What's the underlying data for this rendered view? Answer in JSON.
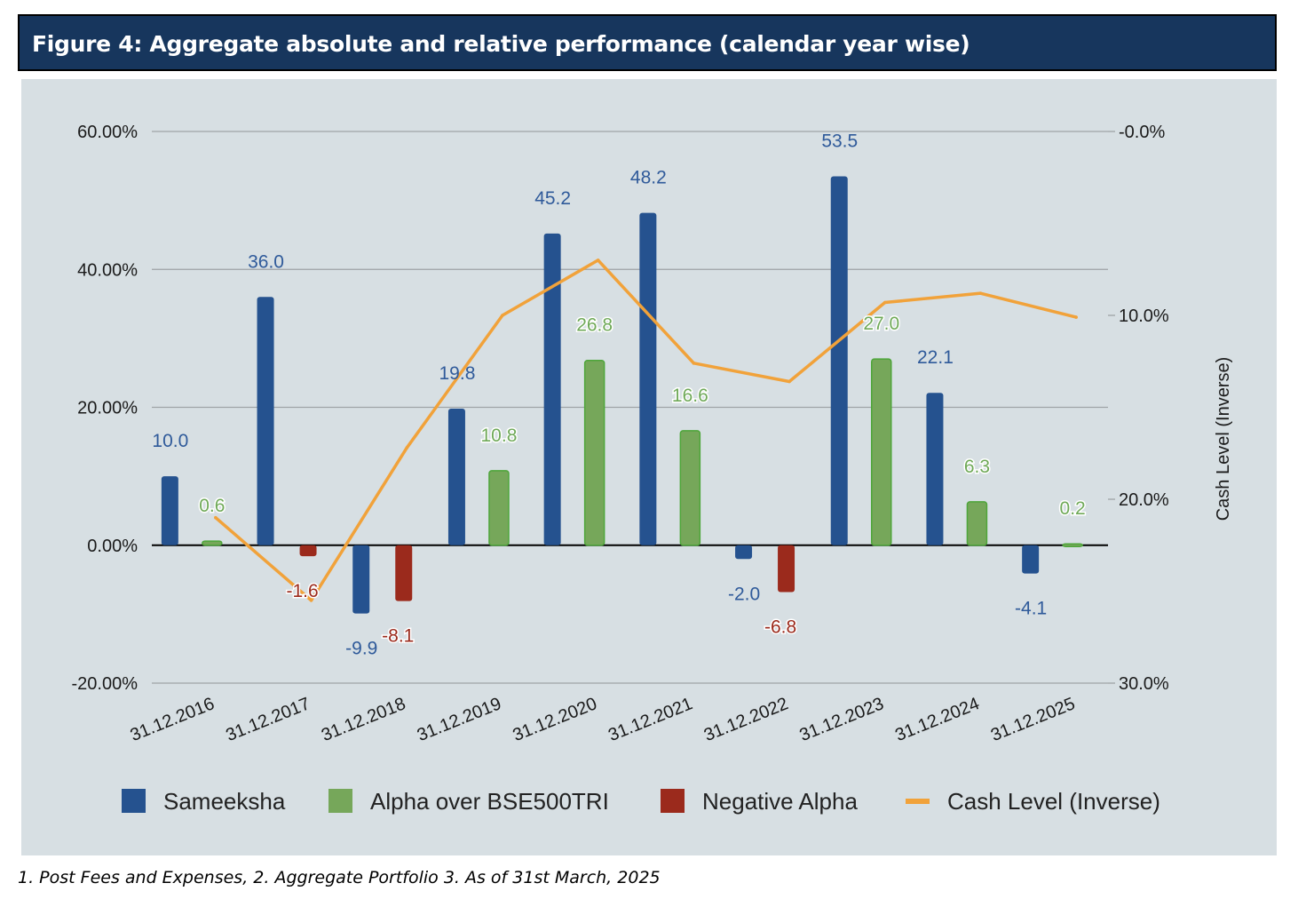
{
  "header": {
    "title": "Figure 4:  Aggregate absolute and relative performance (calendar year wise)"
  },
  "footnote": "1. Post Fees and Expenses, 2. Aggregate Portfolio  3. As of 31st March, 2025",
  "colors": {
    "header_bg": "#17365d",
    "panel_bg": "#d7dfe3",
    "sameeksha": "#25528f",
    "alpha": "#76a75a",
    "alpha_border": "#4ea63a",
    "negative_alpha": "#9b2a1c",
    "cash": "#f1a23a",
    "sameeksha_label": "#2f5a9a",
    "alpha_label": "#6fa958",
    "negative_label": "#9b2a1c"
  },
  "chart_data": {
    "type": "bar",
    "categories": [
      "31.12.2016",
      "31.12.2017",
      "31.12.2018",
      "31.12.2019",
      "31.12.2020",
      "31.12.2021",
      "31.12.2022",
      "31.12.2023",
      "31.12.2024",
      "31.12.2025"
    ],
    "series": [
      {
        "name": "Sameeksha",
        "values": [
          10.0,
          36.0,
          -9.9,
          19.8,
          45.2,
          48.2,
          -2.0,
          53.5,
          22.1,
          -4.1
        ],
        "labels": [
          "10.0",
          "36.0",
          "-9.9",
          "19.8",
          "45.2",
          "48.2",
          "-2.0",
          "53.5",
          "22.1",
          "-4.1"
        ]
      },
      {
        "name": "Alpha over BSE500TRI",
        "values": [
          0.6,
          null,
          null,
          10.8,
          26.8,
          16.6,
          null,
          27.0,
          6.3,
          0.2
        ],
        "labels": [
          "0.6",
          "",
          "",
          "10.8",
          "26.8",
          "16.6",
          "",
          "27.0",
          "6.3",
          "0.2"
        ]
      },
      {
        "name": "Negative Alpha",
        "values": [
          null,
          -1.6,
          -8.1,
          null,
          null,
          null,
          -6.8,
          null,
          null,
          null
        ],
        "labels": [
          "",
          "-1.6",
          "-8.1",
          "",
          "",
          "",
          "-6.8",
          "",
          "",
          ""
        ]
      },
      {
        "name": "Cash Level (Inverse)",
        "type": "line",
        "axis": "right",
        "values": [
          21.0,
          25.5,
          17.2,
          10.0,
          7.0,
          12.6,
          13.6,
          9.3,
          8.8,
          10.1
        ]
      }
    ],
    "left_axis": {
      "ylim": [
        -20,
        60
      ],
      "ticks": [
        60,
        40,
        20,
        0,
        -20
      ],
      "tick_labels": [
        "60.00%",
        "40.00%",
        "20.00%",
        "0.00%",
        "-20.00%"
      ]
    },
    "right_axis": {
      "label": "Cash Level (Inverse)",
      "ylim": [
        0,
        30
      ],
      "inverted": true,
      "ticks": [
        0,
        10,
        20,
        30
      ],
      "tick_labels": [
        "-0.0%",
        "10.0%",
        "20.0%",
        "30.0%"
      ]
    },
    "grid": true,
    "legend_position": "bottom"
  }
}
